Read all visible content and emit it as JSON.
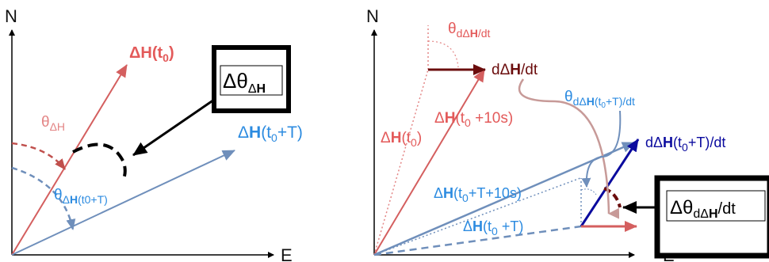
{
  "colors": {
    "red": "#d45f5f",
    "red_light": "#e38585",
    "dark_red": "#6b0d0d",
    "blue": "#6f8fbb",
    "blue_label": "#2c8be0",
    "dark_blue": "#0a0a9e",
    "black": "#000000",
    "mauve": "#c79a98"
  },
  "left_panel": {
    "axis_n": "N",
    "axis_e": "E",
    "vec_h_t0": {
      "delta": "Δ",
      "H": "H",
      "paren": "(t",
      "sub": "0",
      "close": ")"
    },
    "vec_h_t0T": {
      "delta": "Δ",
      "H": "H",
      "paren": "(t",
      "sub": "0",
      "rest": "+T)"
    },
    "theta_h": {
      "theta": "θ",
      "sub": "ΔH"
    },
    "theta_h_t0T": {
      "theta": "θ",
      "sub_delta": "Δ",
      "sub_H": "H",
      "sub_rest": "(t0+T)"
    },
    "box": {
      "delta_theta": "Δθ",
      "sub_delta": "Δ",
      "sub_H": "H"
    }
  },
  "right_panel": {
    "axis_n": "N",
    "axis_e": "E",
    "theta_dh": {
      "theta": "θ",
      "sub_d": "d",
      "sub_delta": "Δ",
      "sub_H": "H",
      "sub_rest": "/dt"
    },
    "dh_dt": {
      "d": "d",
      "delta": "Δ",
      "H": "H",
      "rest": "/dt"
    },
    "h_t0_10s": {
      "delta": "Δ",
      "H": "H",
      "paren": "(t",
      "sub": "0",
      "rest": " +10s)"
    },
    "h_t0": {
      "delta": "Δ",
      "H": "H",
      "paren": "(t",
      "sub": "0",
      "close": ")"
    },
    "theta_dh_t0T": {
      "theta": "θ",
      "sub_d": "d",
      "sub_delta": "Δ",
      "sub_H": "H",
      "sub_paren": "(t",
      "sub_sub": "0",
      "sub_rest": "+T)/dt"
    },
    "dh_t0T_dt": {
      "d": "d",
      "delta": "Δ",
      "H": "H",
      "paren": "(t",
      "sub": "0",
      "rest": "+T)/dt"
    },
    "h_t0T_10s": {
      "delta": "Δ",
      "H": "H",
      "paren": "(t",
      "sub": "0",
      "rest": "+T+10s)"
    },
    "h_t0T": {
      "delta": "Δ",
      "H": "H",
      "paren": "(t",
      "sub": "0",
      "rest": " +T)"
    },
    "box": {
      "delta_theta": "Δθ",
      "sub_d": "d",
      "sub_delta": "Δ",
      "sub_H": "H",
      "sub_rest": "/dt"
    }
  }
}
